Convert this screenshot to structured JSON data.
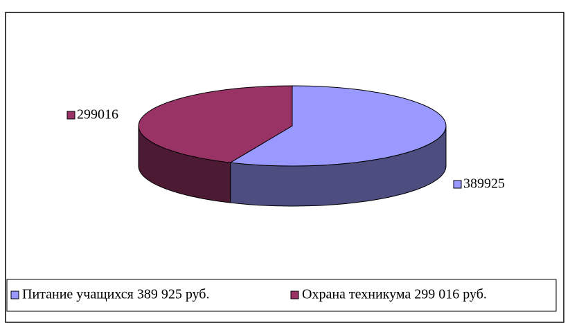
{
  "chart_data": {
    "type": "pie3d",
    "categories": [
      "Питание учащихся 389 925 руб.",
      "Охрана техникума 299 016 руб."
    ],
    "values": [
      389925,
      299016
    ],
    "colors": [
      "#9999ff",
      "#993366"
    ],
    "side_colors": [
      "#4d4d80",
      "#4d1a33"
    ],
    "legend": "bottom"
  }
}
